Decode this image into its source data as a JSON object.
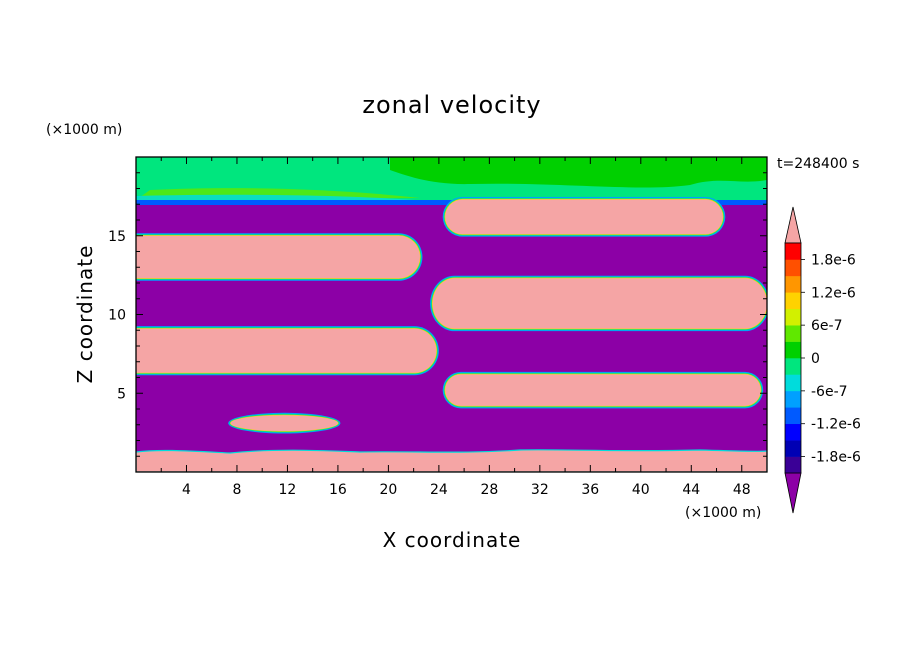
{
  "chart_data": {
    "type": "heatmap",
    "title": "zonal velocity",
    "xlabel": "X coordinate",
    "ylabel": "Z coordinate",
    "x_unit": "(×1000 m)",
    "y_unit": "(×1000 m)",
    "time_label": "t=248400 s",
    "xlim": [
      0,
      50
    ],
    "ylim": [
      0,
      20
    ],
    "x_ticks": [
      4,
      8,
      12,
      16,
      20,
      24,
      28,
      32,
      36,
      40,
      44,
      48
    ],
    "y_ticks": [
      5,
      10,
      15
    ],
    "x_tick_labels": [
      "4",
      "8",
      "12",
      "16",
      "20",
      "24",
      "28",
      "32",
      "36",
      "40",
      "44",
      "48"
    ],
    "y_tick_labels": [
      "5",
      "10",
      "15"
    ],
    "colorbar": {
      "levels": [
        -2.1e-06,
        -1.8e-06,
        -1.5e-06,
        -1.2e-06,
        -9e-07,
        -6e-07,
        -3e-07,
        0,
        3e-07,
        6e-07,
        9e-07,
        1.2e-06,
        1.5e-06,
        1.8e-06,
        2.1e-06
      ],
      "colors": [
        "#8c00a6",
        "#3a0096",
        "#0000b4",
        "#0000ff",
        "#005aff",
        "#00a0ff",
        "#00dcdc",
        "#00e67e",
        "#00d000",
        "#60e800",
        "#d2f000",
        "#ffd200",
        "#ff9600",
        "#ff5000",
        "#ff0000",
        "#f5a5a5"
      ],
      "labels": [
        "1.8e-6",
        "1.2e-6",
        "6e-7",
        "0",
        "-6e-7",
        "-1.2e-6",
        "-1.8e-6"
      ],
      "label_values": [
        1.8e-06,
        1.2e-06,
        6e-07,
        0,
        -6e-07,
        -1.2e-06,
        -1.8e-06
      ]
    },
    "regions": [
      {
        "name": "positive-jet",
        "x": [
          0,
          22.5
        ],
        "z": [
          12.3,
          15.0
        ],
        "value": 2.5e-06
      },
      {
        "name": "positive-jet",
        "x": [
          23.5,
          50
        ],
        "z": [
          9.1,
          12.3
        ],
        "value": 2.5e-06
      },
      {
        "name": "positive-jet",
        "x": [
          24.5,
          46.5
        ],
        "z": [
          15.1,
          17.3
        ],
        "value": 2.5e-06
      },
      {
        "name": "positive-jet",
        "x": [
          0,
          23.8
        ],
        "z": [
          6.3,
          9.1
        ],
        "value": 2.5e-06
      },
      {
        "name": "positive-jet",
        "x": [
          24.5,
          49.5
        ],
        "z": [
          4.2,
          6.2
        ],
        "value": 2.5e-06
      },
      {
        "name": "positive-eddy",
        "x": [
          7.5,
          16
        ],
        "z": [
          2.6,
          3.6
        ],
        "value": 2.5e-06
      },
      {
        "name": "positive-bottom-layer",
        "x": [
          0,
          50
        ],
        "z": [
          0,
          1.5
        ],
        "value": 2.5e-06
      },
      {
        "name": "negative-background",
        "x": [
          0,
          50
        ],
        "z": [
          0,
          17.0
        ],
        "value": -2.5e-06
      },
      {
        "name": "upper-layer",
        "x": [
          0,
          50
        ],
        "z": [
          17.0,
          20.0
        ],
        "value": 2e-07
      }
    ]
  }
}
